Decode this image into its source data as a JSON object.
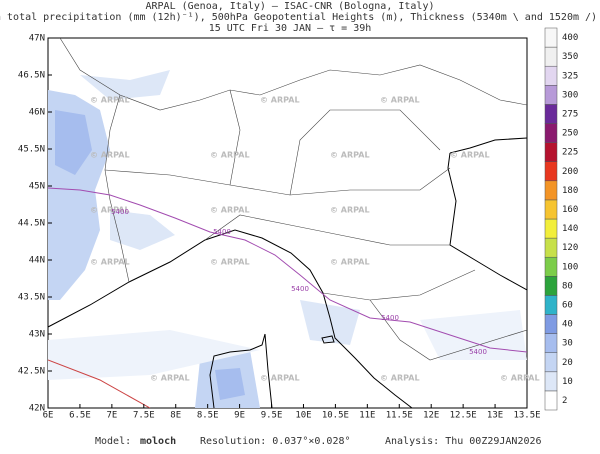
{
  "header": {
    "line1": "ARPAL (Genoa, Italy)  —  ISAC-CNR (Bologna, Italy)",
    "line2": "12h total precipitation (mm (12h)⁻¹), 500hPa Geopotential Heights (m), Thickness (5340m \\ and 1520m /)",
    "line3": "15 UTC Fri 30 JAN  —  τ = 39h"
  },
  "map": {
    "lon_labels": [
      "6E",
      "6.5E",
      "7E",
      "7.5E",
      "8E",
      "8.5E",
      "9E",
      "9.5E",
      "10E",
      "10.5E",
      "11E",
      "11.5E",
      "12E",
      "12.5E",
      "13E",
      "13.5E"
    ],
    "lat_labels": [
      "42N",
      "42.5N",
      "43N",
      "43.5N",
      "44N",
      "44.5N",
      "45N",
      "45.5N",
      "46N",
      "46.5N",
      "47N"
    ],
    "watermark": "© ARPAL",
    "contour_label": "5400"
  },
  "colorbar": [
    {
      "label": "2",
      "color": "#ffffff"
    },
    {
      "label": "10",
      "color": "#dde7f7"
    },
    {
      "label": "20",
      "color": "#c4d5f3"
    },
    {
      "label": "30",
      "color": "#a6bdee"
    },
    {
      "label": "40",
      "color": "#7f9be3"
    },
    {
      "label": "60",
      "color": "#2fb3c9"
    },
    {
      "label": "80",
      "color": "#2ca33c"
    },
    {
      "label": "100",
      "color": "#7ccd4a"
    },
    {
      "label": "120",
      "color": "#c7e04a"
    },
    {
      "label": "140",
      "color": "#f2ee3b"
    },
    {
      "label": "160",
      "color": "#f6c430"
    },
    {
      "label": "180",
      "color": "#f39426"
    },
    {
      "label": "200",
      "color": "#e8371f"
    },
    {
      "label": "225",
      "color": "#b5122e"
    },
    {
      "label": "250",
      "color": "#8a1a6e"
    },
    {
      "label": "275",
      "color": "#6a2a9a"
    },
    {
      "label": "300",
      "color": "#b79ad8"
    },
    {
      "label": "325",
      "color": "#e2d6f0"
    },
    {
      "label": "350",
      "color": "#f0f0f0"
    },
    {
      "label": "400",
      "color": "#f7f7f7"
    }
  ],
  "footer": {
    "model_label": "Model:",
    "model": "moloch",
    "resolution": "Resolution: 0.037°×0.028°",
    "analysis": "Analysis: Thu 00Z29JAN2026"
  }
}
